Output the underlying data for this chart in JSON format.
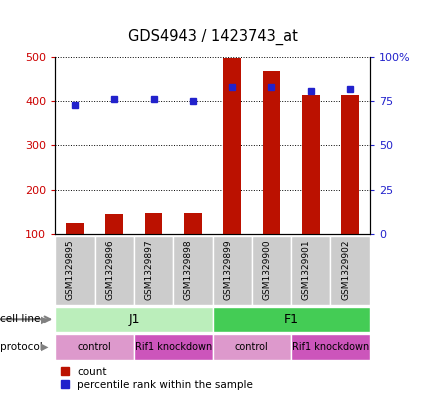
{
  "title": "GDS4943 / 1423743_at",
  "samples": [
    "GSM1329895",
    "GSM1329896",
    "GSM1329897",
    "GSM1329898",
    "GSM1329899",
    "GSM1329900",
    "GSM1329901",
    "GSM1329902"
  ],
  "bar_values": [
    125,
    145,
    148,
    148,
    498,
    468,
    415,
    415
  ],
  "percentile_values": [
    73,
    76,
    76,
    75,
    83,
    83,
    81,
    82
  ],
  "bar_color": "#bb1100",
  "dot_color": "#2222cc",
  "cell_line_groups": [
    {
      "label": "J1",
      "start": 0,
      "end": 4,
      "color": "#bbeebb"
    },
    {
      "label": "F1",
      "start": 4,
      "end": 8,
      "color": "#44cc55"
    }
  ],
  "protocol_groups": [
    {
      "label": "control",
      "start": 0,
      "end": 2,
      "color": "#dd99cc"
    },
    {
      "label": "Rif1 knockdown",
      "start": 2,
      "end": 4,
      "color": "#cc55bb"
    },
    {
      "label": "control",
      "start": 4,
      "end": 6,
      "color": "#dd99cc"
    },
    {
      "label": "Rif1 knockdown",
      "start": 6,
      "end": 8,
      "color": "#cc55bb"
    }
  ],
  "ylim_left": [
    100,
    500
  ],
  "ylim_right": [
    0,
    100
  ],
  "yticks_left": [
    100,
    200,
    300,
    400,
    500
  ],
  "yticks_right": [
    0,
    25,
    50,
    75,
    100
  ],
  "ytick_labels_right": [
    "0",
    "25",
    "50",
    "75",
    "100%"
  ],
  "left_tick_color": "#cc0000",
  "right_tick_color": "#2222cc",
  "sample_box_color": "#cccccc",
  "cell_line_label": "cell line",
  "protocol_label": "protocol",
  "legend_count_label": "count",
  "legend_percentile_label": "percentile rank within the sample"
}
